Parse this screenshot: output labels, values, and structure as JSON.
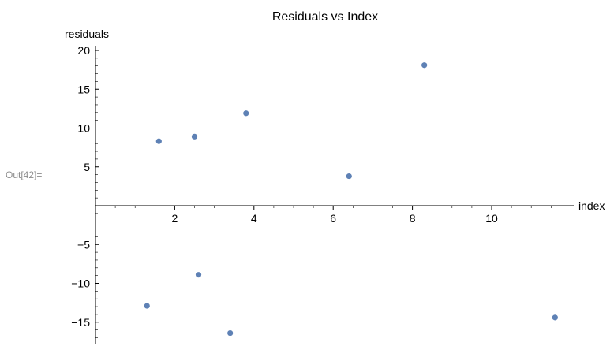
{
  "cell": {
    "output_label": "Out[42]="
  },
  "colors": {
    "point": "#5e81b5",
    "axis": "#000000"
  },
  "chart_data": {
    "type": "scatter",
    "title": "Residuals vs Index",
    "xlabel": "index",
    "ylabel": "residuals",
    "xlim": [
      0,
      11.9
    ],
    "ylim": [
      -18,
      20.4
    ],
    "xticks": [
      2,
      4,
      6,
      8,
      10
    ],
    "yticks": [
      -15,
      -10,
      -5,
      5,
      10,
      15,
      20
    ],
    "xtick_labels": [
      "2",
      "4",
      "6",
      "8",
      "10"
    ],
    "ytick_labels": [
      "−15",
      "−10",
      "−5",
      "5",
      "10",
      "15",
      "20"
    ],
    "grid": false,
    "points": [
      {
        "x": 1.3,
        "y": -12.9
      },
      {
        "x": 1.6,
        "y": 8.3
      },
      {
        "x": 2.5,
        "y": 8.9
      },
      {
        "x": 2.6,
        "y": -8.9
      },
      {
        "x": 3.4,
        "y": -16.4
      },
      {
        "x": 3.8,
        "y": 11.9
      },
      {
        "x": 6.4,
        "y": 3.8
      },
      {
        "x": 8.3,
        "y": 18.1
      },
      {
        "x": 11.6,
        "y": -14.4
      }
    ]
  }
}
